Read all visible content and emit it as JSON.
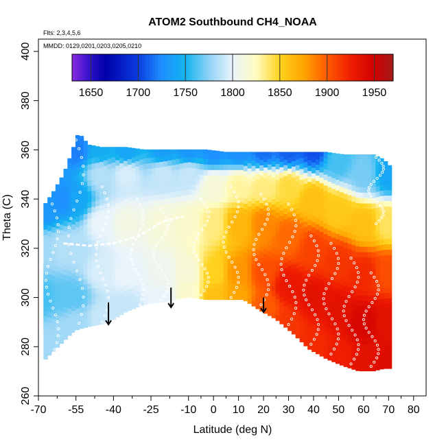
{
  "chart_data": {
    "type": "heatmap",
    "title": "ATOM2 Southbound CH4_NOAA",
    "flights_note": "Flts: 2,3,4,5,6",
    "dates_note": "MMDD: 0129,0201,0203,0205,0210",
    "xlabel": "Latitude (deg N)",
    "ylabel": "Theta (C)",
    "xlim": [
      -70,
      85
    ],
    "ylim": [
      260,
      405
    ],
    "x_ticks": [
      -70,
      -55,
      -40,
      -25,
      -10,
      0,
      10,
      20,
      30,
      40,
      50,
      60,
      70,
      80
    ],
    "x_tick_labels": [
      "-70",
      "-55",
      "-40",
      "-25",
      "-10",
      "0",
      "10",
      "20",
      "30",
      "40",
      "50",
      "60",
      "70",
      "80"
    ],
    "x_minor_ticks": [
      -62.5,
      -47.5,
      -32.5,
      -17.5,
      -5,
      5,
      15,
      25,
      35,
      45,
      55,
      65,
      75
    ],
    "y_ticks": [
      260,
      280,
      300,
      320,
      340,
      360,
      380,
      400
    ],
    "y_tick_labels": [
      "260",
      "280",
      "300",
      "320",
      "340",
      "360",
      "380",
      "400"
    ],
    "colorbar": {
      "range": [
        1630,
        1970
      ],
      "ticks": [
        1650,
        1700,
        1750,
        1800,
        1850,
        1900,
        1950
      ],
      "tick_labels": [
        "1650",
        "1700",
        "1750",
        "1800",
        "1850",
        "1900",
        "1950"
      ],
      "stops": [
        {
          "v": 1630,
          "c": "#8a2be2"
        },
        {
          "v": 1650,
          "c": "#2a10c8"
        },
        {
          "v": 1665,
          "c": "#0000a8"
        },
        {
          "v": 1700,
          "c": "#0a3ce0"
        },
        {
          "v": 1725,
          "c": "#1e90ff"
        },
        {
          "v": 1750,
          "c": "#14b4f0"
        },
        {
          "v": 1775,
          "c": "#8fd2f5"
        },
        {
          "v": 1800,
          "c": "#eaf4fb"
        },
        {
          "v": 1825,
          "c": "#fffcc0"
        },
        {
          "v": 1850,
          "c": "#ffd21e"
        },
        {
          "v": 1875,
          "c": "#ffa500"
        },
        {
          "v": 1900,
          "c": "#ff5a00"
        },
        {
          "v": 1925,
          "c": "#f01e00"
        },
        {
          "v": 1950,
          "c": "#d00000"
        },
        {
          "v": 1970,
          "c": "#a51c1c"
        }
      ]
    },
    "field_columns": [
      {
        "lat": -68,
        "bottom": 274,
        "top": 337
      },
      {
        "lat": -64,
        "bottom": 278,
        "top": 343
      },
      {
        "lat": -60,
        "bottom": 282,
        "top": 350
      },
      {
        "lat": -57,
        "bottom": 285,
        "top": 358
      },
      {
        "lat": -54,
        "bottom": 287,
        "top": 367
      },
      {
        "lat": -50,
        "bottom": 288,
        "top": 362
      },
      {
        "lat": -45,
        "bottom": 289,
        "top": 361
      },
      {
        "lat": -40,
        "bottom": 291,
        "top": 361
      },
      {
        "lat": -35,
        "bottom": 294,
        "top": 361
      },
      {
        "lat": -28,
        "bottom": 297,
        "top": 360
      },
      {
        "lat": -20,
        "bottom": 298,
        "top": 360
      },
      {
        "lat": -10,
        "bottom": 300,
        "top": 360
      },
      {
        "lat": -3,
        "bottom": 299,
        "top": 360
      },
      {
        "lat": 5,
        "bottom": 299,
        "top": 359
      },
      {
        "lat": 12,
        "bottom": 299,
        "top": 359
      },
      {
        "lat": 18,
        "bottom": 295,
        "top": 359
      },
      {
        "lat": 25,
        "bottom": 291,
        "top": 359
      },
      {
        "lat": 32,
        "bottom": 285,
        "top": 359
      },
      {
        "lat": 38,
        "bottom": 279,
        "top": 359
      },
      {
        "lat": 45,
        "bottom": 275,
        "top": 359
      },
      {
        "lat": 52,
        "bottom": 272,
        "top": 358
      },
      {
        "lat": 58,
        "bottom": 270,
        "top": 358
      },
      {
        "lat": 64,
        "bottom": 270,
        "top": 358
      },
      {
        "lat": 68,
        "bottom": 271,
        "top": 356
      },
      {
        "lat": 72,
        "bottom": 271,
        "top": 352
      }
    ],
    "field_samples": [
      {
        "lat": -68,
        "theta": 280,
        "ch4": 1780
      },
      {
        "lat": -68,
        "theta": 300,
        "ch4": 1760
      },
      {
        "lat": -68,
        "theta": 320,
        "ch4": 1780
      },
      {
        "lat": -68,
        "theta": 335,
        "ch4": 1730
      },
      {
        "lat": -60,
        "theta": 285,
        "ch4": 1780
      },
      {
        "lat": -60,
        "theta": 300,
        "ch4": 1765
      },
      {
        "lat": -60,
        "theta": 320,
        "ch4": 1785
      },
      {
        "lat": -60,
        "theta": 340,
        "ch4": 1725
      },
      {
        "lat": -55,
        "theta": 290,
        "ch4": 1780
      },
      {
        "lat": -55,
        "theta": 300,
        "ch4": 1765
      },
      {
        "lat": -55,
        "theta": 320,
        "ch4": 1785
      },
      {
        "lat": -55,
        "theta": 340,
        "ch4": 1740
      },
      {
        "lat": -55,
        "theta": 360,
        "ch4": 1720
      },
      {
        "lat": -45,
        "theta": 292,
        "ch4": 1790
      },
      {
        "lat": -45,
        "theta": 310,
        "ch4": 1795
      },
      {
        "lat": -45,
        "theta": 330,
        "ch4": 1800
      },
      {
        "lat": -45,
        "theta": 350,
        "ch4": 1785
      },
      {
        "lat": -45,
        "theta": 360,
        "ch4": 1745
      },
      {
        "lat": -35,
        "theta": 296,
        "ch4": 1790
      },
      {
        "lat": -35,
        "theta": 310,
        "ch4": 1800
      },
      {
        "lat": -35,
        "theta": 330,
        "ch4": 1810
      },
      {
        "lat": -35,
        "theta": 350,
        "ch4": 1795
      },
      {
        "lat": -35,
        "theta": 360,
        "ch4": 1740
      },
      {
        "lat": -20,
        "theta": 299,
        "ch4": 1800
      },
      {
        "lat": -20,
        "theta": 310,
        "ch4": 1805
      },
      {
        "lat": -20,
        "theta": 330,
        "ch4": 1815
      },
      {
        "lat": -20,
        "theta": 350,
        "ch4": 1790
      },
      {
        "lat": -20,
        "theta": 360,
        "ch4": 1735
      },
      {
        "lat": -10,
        "theta": 301,
        "ch4": 1820
      },
      {
        "lat": -10,
        "theta": 310,
        "ch4": 1815
      },
      {
        "lat": -10,
        "theta": 330,
        "ch4": 1820
      },
      {
        "lat": -10,
        "theta": 350,
        "ch4": 1790
      },
      {
        "lat": -10,
        "theta": 360,
        "ch4": 1730
      },
      {
        "lat": 0,
        "theta": 300,
        "ch4": 1860
      },
      {
        "lat": 0,
        "theta": 310,
        "ch4": 1850
      },
      {
        "lat": 0,
        "theta": 330,
        "ch4": 1835
      },
      {
        "lat": 0,
        "theta": 345,
        "ch4": 1815
      },
      {
        "lat": 0,
        "theta": 360,
        "ch4": 1725
      },
      {
        "lat": 10,
        "theta": 300,
        "ch4": 1875
      },
      {
        "lat": 10,
        "theta": 310,
        "ch4": 1880
      },
      {
        "lat": 10,
        "theta": 330,
        "ch4": 1865
      },
      {
        "lat": 10,
        "theta": 345,
        "ch4": 1830
      },
      {
        "lat": 10,
        "theta": 360,
        "ch4": 1725
      },
      {
        "lat": 20,
        "theta": 296,
        "ch4": 1900
      },
      {
        "lat": 20,
        "theta": 310,
        "ch4": 1905
      },
      {
        "lat": 20,
        "theta": 330,
        "ch4": 1885
      },
      {
        "lat": 20,
        "theta": 345,
        "ch4": 1835
      },
      {
        "lat": 20,
        "theta": 360,
        "ch4": 1715
      },
      {
        "lat": 30,
        "theta": 288,
        "ch4": 1915
      },
      {
        "lat": 30,
        "theta": 305,
        "ch4": 1930
      },
      {
        "lat": 30,
        "theta": 325,
        "ch4": 1895
      },
      {
        "lat": 30,
        "theta": 345,
        "ch4": 1845
      },
      {
        "lat": 30,
        "theta": 360,
        "ch4": 1710
      },
      {
        "lat": 40,
        "theta": 280,
        "ch4": 1920
      },
      {
        "lat": 40,
        "theta": 300,
        "ch4": 1935
      },
      {
        "lat": 40,
        "theta": 320,
        "ch4": 1910
      },
      {
        "lat": 40,
        "theta": 340,
        "ch4": 1860
      },
      {
        "lat": 40,
        "theta": 360,
        "ch4": 1705
      },
      {
        "lat": 50,
        "theta": 275,
        "ch4": 1925
      },
      {
        "lat": 50,
        "theta": 295,
        "ch4": 1935
      },
      {
        "lat": 50,
        "theta": 315,
        "ch4": 1915
      },
      {
        "lat": 50,
        "theta": 335,
        "ch4": 1855
      },
      {
        "lat": 50,
        "theta": 355,
        "ch4": 1760
      },
      {
        "lat": 60,
        "theta": 272,
        "ch4": 1935
      },
      {
        "lat": 60,
        "theta": 290,
        "ch4": 1945
      },
      {
        "lat": 60,
        "theta": 310,
        "ch4": 1920
      },
      {
        "lat": 60,
        "theta": 330,
        "ch4": 1860
      },
      {
        "lat": 60,
        "theta": 350,
        "ch4": 1770
      },
      {
        "lat": 70,
        "theta": 272,
        "ch4": 1940
      },
      {
        "lat": 70,
        "theta": 290,
        "ch4": 1935
      },
      {
        "lat": 70,
        "theta": 310,
        "ch4": 1905
      },
      {
        "lat": 70,
        "theta": 330,
        "ch4": 1840
      },
      {
        "lat": 70,
        "theta": 350,
        "ch4": 1740
      }
    ],
    "sample_tracks": [
      {
        "lat0": -67,
        "lat1": -62,
        "theta0": 276,
        "theta1": 338
      },
      {
        "lat0": -58,
        "lat1": -52,
        "theta0": 286,
        "theta1": 364
      },
      {
        "lat0": -47,
        "lat1": -42,
        "theta0": 290,
        "theta1": 345
      },
      {
        "lat0": -33,
        "lat1": -28,
        "theta0": 295,
        "theta1": 340
      },
      {
        "lat0": -24,
        "lat1": -18,
        "theta0": 299,
        "theta1": 336
      },
      {
        "lat0": -8,
        "lat1": -2,
        "theta0": 301,
        "theta1": 340
      },
      {
        "lat0": 4,
        "lat1": 10,
        "theta0": 300,
        "theta1": 345
      },
      {
        "lat0": 16,
        "lat1": 22,
        "theta0": 297,
        "theta1": 342
      },
      {
        "lat0": 27,
        "lat1": 33,
        "theta0": 289,
        "theta1": 338
      },
      {
        "lat0": 36,
        "lat1": 42,
        "theta0": 281,
        "theta1": 325
      },
      {
        "lat0": 44,
        "lat1": 50,
        "theta0": 277,
        "theta1": 322
      },
      {
        "lat0": 52,
        "lat1": 58,
        "theta0": 273,
        "theta1": 316
      },
      {
        "lat0": 60,
        "lat1": 66,
        "theta0": 272,
        "theta1": 310
      },
      {
        "lat0": 62,
        "lat1": 68,
        "theta0": 330,
        "theta1": 357
      }
    ],
    "tropopause_trace": [
      {
        "lat": -60,
        "theta": 322
      },
      {
        "lat": -50,
        "theta": 321
      },
      {
        "lat": -40,
        "theta": 322
      },
      {
        "lat": -30,
        "theta": 325
      },
      {
        "lat": -20,
        "theta": 331
      },
      {
        "lat": -12,
        "theta": 333
      }
    ],
    "arrows": [
      {
        "lat": -42,
        "theta_top": 298,
        "theta_tip": 289
      },
      {
        "lat": -17,
        "theta_top": 304,
        "theta_tip": 296
      },
      {
        "lat": 20,
        "theta_top": 300,
        "theta_tip": 294
      }
    ]
  }
}
